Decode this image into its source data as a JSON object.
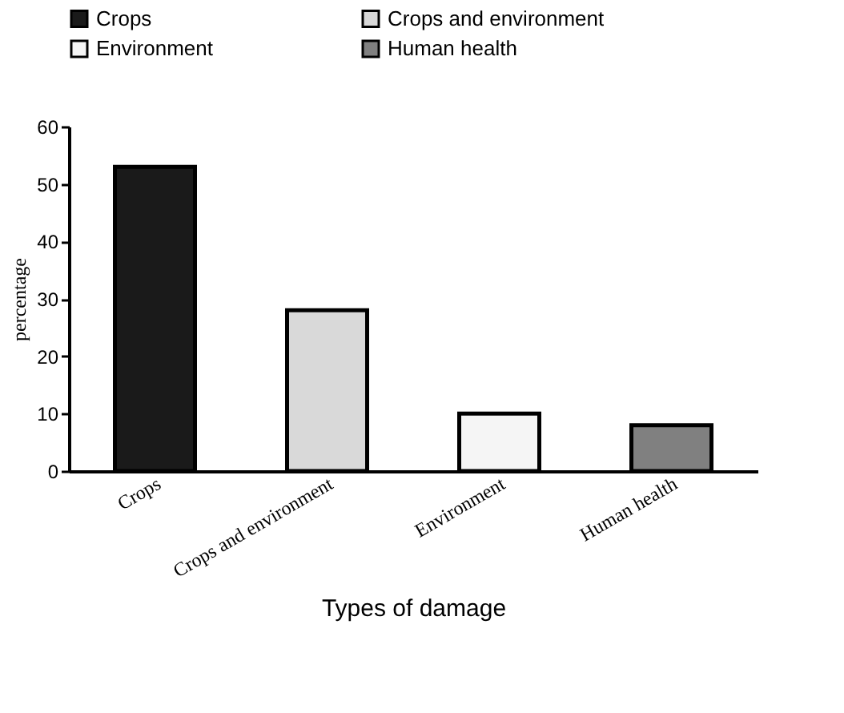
{
  "chart_data": {
    "type": "bar",
    "xlabel": "Types of damage",
    "ylabel": "percentage",
    "categories": [
      "Crops",
      "Crops and environment",
      "Environment",
      "Human health"
    ],
    "series": [
      {
        "name": "Crops",
        "color": "#1a1a1a",
        "values": [
          53,
          null,
          null,
          null
        ]
      },
      {
        "name": "Crops and environment",
        "color": "#d9d9d9",
        "values": [
          null,
          28,
          null,
          null
        ]
      },
      {
        "name": "Environment",
        "color": "#f5f5f5",
        "values": [
          null,
          null,
          10,
          null
        ]
      },
      {
        "name": "Human health",
        "color": "#808080",
        "values": [
          null,
          null,
          null,
          8
        ]
      }
    ],
    "ylim": [
      0,
      60
    ],
    "yticks": [
      0,
      10,
      20,
      30,
      40,
      50,
      60
    ],
    "grid": false,
    "legend": "top left"
  }
}
